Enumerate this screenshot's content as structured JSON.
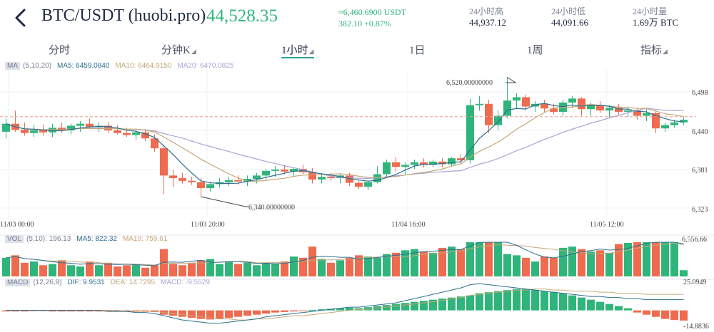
{
  "header": {
    "pair": "BTC/USDT (huobi.pro)",
    "last_price": "44,528.35",
    "converted": "≈6,460.6900 USDT",
    "change": "382.10 +0.87%",
    "stats": [
      {
        "label": "24小时高",
        "value": "44,937.12"
      },
      {
        "label": "24小时低",
        "value": "44,091.66"
      },
      {
        "label": "24小时量",
        "value": "1.69万 BTC"
      }
    ],
    "icons": {
      "back": "chevron-left-icon"
    }
  },
  "tabs": [
    {
      "label": "分时",
      "dropdown": false
    },
    {
      "label": "分钟K",
      "dropdown": true
    },
    {
      "label": "1小时",
      "dropdown": true,
      "active": true
    },
    {
      "label": "1日",
      "dropdown": false
    },
    {
      "label": "1周",
      "dropdown": false
    },
    {
      "label": "指标",
      "dropdown": true
    }
  ],
  "ma_legend": {
    "tag": "MA",
    "params": "(5,10,20)",
    "ma5": "MA5: 6459.0840",
    "ma10": "MA10: 6464.9150",
    "ma20": "MA20: 6470.0825"
  },
  "vol_legend": {
    "tag": "VOL",
    "params": "(5,10): 196.13",
    "ma5": "MA5: 822.32",
    "ma10": "MA10: 759.61"
  },
  "macd_legend": {
    "tag": "MACD",
    "params": "(12,26,9)",
    "dif": "DIF: 9.9531",
    "dea": "DEA: 14.7295",
    "macd": "MACD: -9.5529"
  },
  "colors": {
    "up": "#2fb57b",
    "down": "#ee6b4f",
    "ma5": "#2e6f8e",
    "ma10": "#c5a779",
    "ma20": "#a9a4d6",
    "accent": "#2fa3a0",
    "current_line": "#ee9f8e"
  },
  "chart_data": {
    "type": "candlestick",
    "price_axis_ticks": [
      "6,498",
      "6,440",
      "6,381",
      "6,323"
    ],
    "time_ticks": [
      "11/03 00:00",
      "11/03 20:00",
      "11/04 16:00",
      "11/05 12:00"
    ],
    "high_annotation": "6,520.00000000",
    "low_annotation": "6,340.00000000",
    "current_price": 6460.69,
    "volume_axis_max": "6,556.66",
    "macd_axis_max": "25.0949",
    "macd_axis_min": "-14.8836",
    "candles": [
      {
        "o": 6438,
        "h": 6458,
        "l": 6428,
        "c": 6450
      },
      {
        "o": 6450,
        "h": 6470,
        "l": 6438,
        "c": 6441
      },
      {
        "o": 6441,
        "h": 6452,
        "l": 6432,
        "c": 6436
      },
      {
        "o": 6436,
        "h": 6448,
        "l": 6430,
        "c": 6440
      },
      {
        "o": 6440,
        "h": 6449,
        "l": 6432,
        "c": 6437
      },
      {
        "o": 6437,
        "h": 6450,
        "l": 6430,
        "c": 6444
      },
      {
        "o": 6444,
        "h": 6452,
        "l": 6436,
        "c": 6440
      },
      {
        "o": 6440,
        "h": 6450,
        "l": 6434,
        "c": 6447
      },
      {
        "o": 6447,
        "h": 6454,
        "l": 6438,
        "c": 6450
      },
      {
        "o": 6450,
        "h": 6458,
        "l": 6442,
        "c": 6445
      },
      {
        "o": 6445,
        "h": 6452,
        "l": 6438,
        "c": 6447
      },
      {
        "o": 6447,
        "h": 6452,
        "l": 6436,
        "c": 6440
      },
      {
        "o": 6440,
        "h": 6448,
        "l": 6434,
        "c": 6436
      },
      {
        "o": 6436,
        "h": 6444,
        "l": 6430,
        "c": 6433
      },
      {
        "o": 6433,
        "h": 6440,
        "l": 6426,
        "c": 6437
      },
      {
        "o": 6437,
        "h": 6442,
        "l": 6424,
        "c": 6428
      },
      {
        "o": 6428,
        "h": 6434,
        "l": 6408,
        "c": 6413
      },
      {
        "o": 6413,
        "h": 6418,
        "l": 6344,
        "c": 6372
      },
      {
        "o": 6372,
        "h": 6380,
        "l": 6355,
        "c": 6368
      },
      {
        "o": 6368,
        "h": 6376,
        "l": 6360,
        "c": 6364
      },
      {
        "o": 6364,
        "h": 6370,
        "l": 6358,
        "c": 6362
      },
      {
        "o": 6362,
        "h": 6368,
        "l": 6340,
        "c": 6353
      },
      {
        "o": 6353,
        "h": 6362,
        "l": 6348,
        "c": 6359
      },
      {
        "o": 6359,
        "h": 6368,
        "l": 6354,
        "c": 6362
      },
      {
        "o": 6362,
        "h": 6370,
        "l": 6356,
        "c": 6365
      },
      {
        "o": 6365,
        "h": 6372,
        "l": 6358,
        "c": 6363
      },
      {
        "o": 6363,
        "h": 6372,
        "l": 6356,
        "c": 6367
      },
      {
        "o": 6367,
        "h": 6376,
        "l": 6360,
        "c": 6372
      },
      {
        "o": 6372,
        "h": 6382,
        "l": 6366,
        "c": 6379
      },
      {
        "o": 6379,
        "h": 6386,
        "l": 6370,
        "c": 6381
      },
      {
        "o": 6381,
        "h": 6388,
        "l": 6374,
        "c": 6378
      },
      {
        "o": 6378,
        "h": 6384,
        "l": 6370,
        "c": 6382
      },
      {
        "o": 6382,
        "h": 6388,
        "l": 6374,
        "c": 6377
      },
      {
        "o": 6377,
        "h": 6383,
        "l": 6360,
        "c": 6366
      },
      {
        "o": 6366,
        "h": 6374,
        "l": 6360,
        "c": 6370
      },
      {
        "o": 6370,
        "h": 6376,
        "l": 6364,
        "c": 6368
      },
      {
        "o": 6368,
        "h": 6374,
        "l": 6360,
        "c": 6372
      },
      {
        "o": 6372,
        "h": 6376,
        "l": 6356,
        "c": 6361
      },
      {
        "o": 6361,
        "h": 6366,
        "l": 6352,
        "c": 6355
      },
      {
        "o": 6355,
        "h": 6364,
        "l": 6350,
        "c": 6362
      },
      {
        "o": 6362,
        "h": 6386,
        "l": 6360,
        "c": 6374
      },
      {
        "o": 6374,
        "h": 6396,
        "l": 6368,
        "c": 6392
      },
      {
        "o": 6392,
        "h": 6400,
        "l": 6378,
        "c": 6385
      },
      {
        "o": 6385,
        "h": 6392,
        "l": 6374,
        "c": 6388
      },
      {
        "o": 6388,
        "h": 6396,
        "l": 6382,
        "c": 6392
      },
      {
        "o": 6392,
        "h": 6398,
        "l": 6384,
        "c": 6388
      },
      {
        "o": 6388,
        "h": 6396,
        "l": 6384,
        "c": 6393
      },
      {
        "o": 6393,
        "h": 6398,
        "l": 6384,
        "c": 6389
      },
      {
        "o": 6389,
        "h": 6400,
        "l": 6386,
        "c": 6398
      },
      {
        "o": 6398,
        "h": 6404,
        "l": 6390,
        "c": 6395
      },
      {
        "o": 6395,
        "h": 6488,
        "l": 6390,
        "c": 6478
      },
      {
        "o": 6478,
        "h": 6492,
        "l": 6470,
        "c": 6480
      },
      {
        "o": 6480,
        "h": 6486,
        "l": 6436,
        "c": 6448
      },
      {
        "o": 6448,
        "h": 6470,
        "l": 6440,
        "c": 6462
      },
      {
        "o": 6462,
        "h": 6520,
        "l": 6458,
        "c": 6485
      },
      {
        "o": 6485,
        "h": 6496,
        "l": 6472,
        "c": 6490
      },
      {
        "o": 6490,
        "h": 6494,
        "l": 6470,
        "c": 6476
      },
      {
        "o": 6476,
        "h": 6484,
        "l": 6468,
        "c": 6480
      },
      {
        "o": 6480,
        "h": 6486,
        "l": 6468,
        "c": 6473
      },
      {
        "o": 6473,
        "h": 6480,
        "l": 6464,
        "c": 6468
      },
      {
        "o": 6468,
        "h": 6486,
        "l": 6462,
        "c": 6482
      },
      {
        "o": 6482,
        "h": 6492,
        "l": 6474,
        "c": 6488
      },
      {
        "o": 6488,
        "h": 6490,
        "l": 6462,
        "c": 6472
      },
      {
        "o": 6472,
        "h": 6482,
        "l": 6462,
        "c": 6478
      },
      {
        "o": 6478,
        "h": 6484,
        "l": 6466,
        "c": 6470
      },
      {
        "o": 6470,
        "h": 6478,
        "l": 6460,
        "c": 6474
      },
      {
        "o": 6474,
        "h": 6480,
        "l": 6462,
        "c": 6468
      },
      {
        "o": 6468,
        "h": 6476,
        "l": 6460,
        "c": 6470
      },
      {
        "o": 6470,
        "h": 6474,
        "l": 6456,
        "c": 6462
      },
      {
        "o": 6462,
        "h": 6472,
        "l": 6454,
        "c": 6466
      },
      {
        "o": 6466,
        "h": 6470,
        "l": 6436,
        "c": 6443
      },
      {
        "o": 6443,
        "h": 6452,
        "l": 6438,
        "c": 6448
      },
      {
        "o": 6448,
        "h": 6456,
        "l": 6444,
        "c": 6452
      },
      {
        "o": 6452,
        "h": 6460,
        "l": 6448,
        "c": 6456
      }
    ],
    "volume": [
      1500,
      1700,
      1100,
      1200,
      900,
      1000,
      1300,
      900,
      800,
      1200,
      900,
      1100,
      800,
      900,
      1000,
      700,
      900,
      2200,
      1000,
      900,
      1100,
      1300,
      1400,
      1000,
      1200,
      1000,
      1100,
      900,
      1100,
      1000,
      1200,
      1600,
      1500,
      2400,
      1400,
      1100,
      1300,
      1500,
      1700,
      1600,
      1500,
      1800,
      1900,
      2100,
      2200,
      2000,
      1900,
      2300,
      2400,
      2200,
      3500,
      3300,
      2900,
      2800,
      1800,
      1700,
      1500,
      1200,
      1600,
      1500,
      2300,
      2400,
      2200,
      2000,
      2100,
      1900,
      2600,
      2700,
      3000,
      3100,
      3000,
      3300,
      3200,
      500
    ],
    "macd_hist": [
      -1,
      -1,
      -1,
      -0.5,
      -0.5,
      -1,
      -1,
      -1,
      -1,
      -1,
      -1,
      -1,
      -1,
      -1,
      -1,
      -1,
      -1.5,
      -4,
      -5,
      -6,
      -7,
      -8,
      -8.5,
      -8,
      -7,
      -6,
      -5,
      -4,
      -3,
      -2,
      -1.5,
      -1,
      -0.5,
      0.5,
      1,
      1.5,
      2,
      2.5,
      2,
      3,
      4,
      5,
      6,
      7,
      8,
      9,
      10,
      11,
      12,
      13,
      14,
      16,
      17,
      18,
      19,
      20,
      20,
      19,
      18,
      17,
      16,
      14,
      12,
      10,
      8,
      6,
      4,
      2,
      -2,
      -4,
      -6,
      -8,
      -9,
      -9.5
    ],
    "macd_dif": [
      0,
      0,
      0,
      0,
      0,
      0,
      0,
      0,
      0,
      0,
      0,
      -1,
      -1,
      -1,
      -2,
      -2,
      -3,
      -5,
      -7,
      -9,
      -10,
      -11,
      -12,
      -12,
      -11,
      -10,
      -9,
      -8,
      -6,
      -5,
      -4,
      -3,
      -2,
      -1,
      0,
      1,
      2,
      3,
      3,
      4,
      5,
      6,
      7,
      9,
      11,
      13,
      15,
      17,
      19,
      21,
      24,
      25,
      24,
      23,
      22,
      21,
      20,
      19,
      18,
      17,
      16,
      15,
      14,
      13,
      13,
      12,
      12,
      11,
      11,
      10,
      10,
      10,
      10,
      10
    ],
    "macd_dea": [
      0,
      0,
      0,
      0,
      0,
      0,
      0,
      0,
      0,
      0,
      0,
      0,
      0,
      -1,
      -1,
      -1,
      -1,
      -2,
      -3,
      -4,
      -5,
      -6,
      -7,
      -8,
      -8,
      -9,
      -9,
      -8,
      -8,
      -7,
      -6,
      -5,
      -5,
      -4,
      -3,
      -2,
      -1,
      0,
      1,
      1,
      2,
      3,
      4,
      5,
      6,
      7,
      8,
      9,
      11,
      12,
      14,
      15,
      16,
      17,
      18,
      19,
      19,
      20,
      20,
      19,
      19,
      18,
      18,
      18,
      17,
      17,
      16,
      16,
      16,
      15,
      15,
      15,
      15,
      15
    ]
  }
}
